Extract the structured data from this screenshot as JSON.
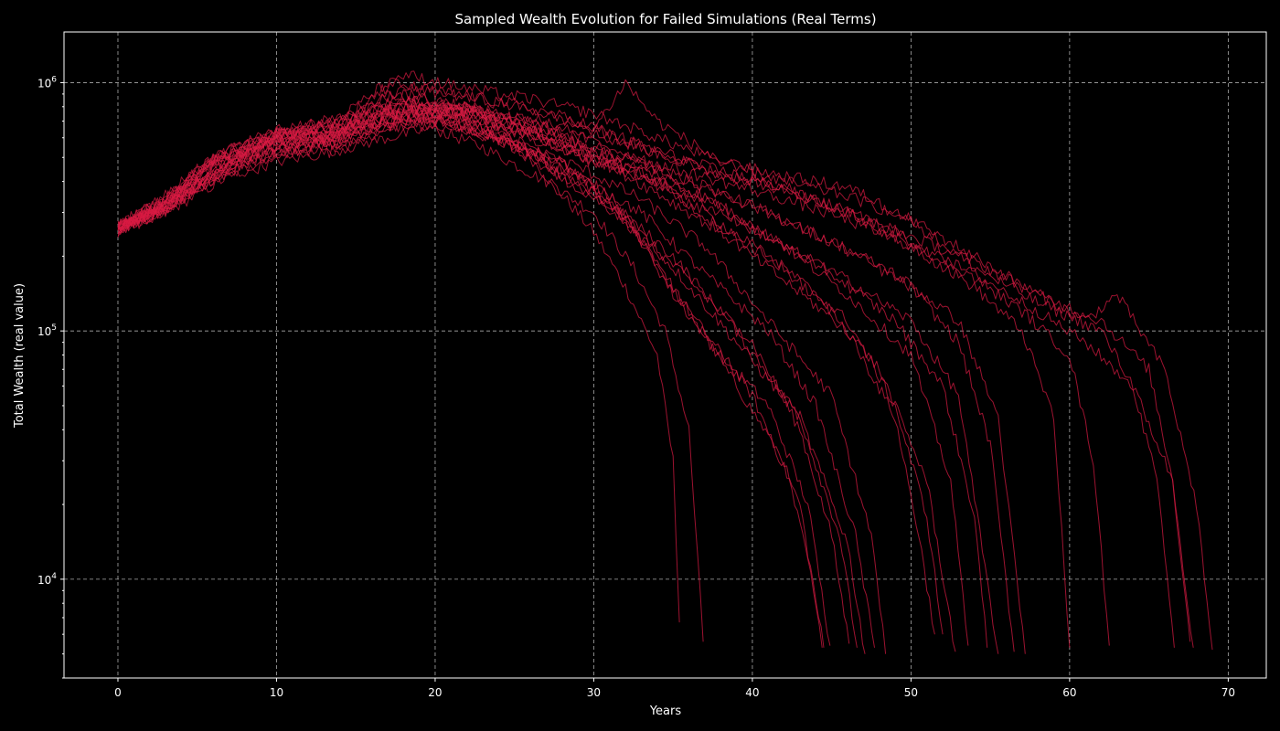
{
  "chart_data": {
    "type": "line",
    "title": "Sampled Wealth Evolution for Failed Simulations (Real Terms)",
    "xlabel": "Years",
    "ylabel": "Total Wealth (real value)",
    "xlim": [
      -3.4,
      72.4
    ],
    "ylim": [
      4000,
      1600000
    ],
    "yscale": "log",
    "grid": true,
    "legend": "none",
    "x_ticks": [
      0,
      10,
      20,
      30,
      40,
      50,
      60,
      70
    ],
    "x_tick_labels": [
      "0",
      "10",
      "20",
      "30",
      "40",
      "50",
      "60",
      "70"
    ],
    "y_ticks": [
      10000,
      100000,
      1000000
    ],
    "y_tick_exponents": [
      "4",
      "5",
      "6"
    ],
    "y_tick_base": "10",
    "series_color": "#d81b42",
    "series": [
      {
        "x": [
          0,
          3,
          6,
          10,
          14,
          18,
          20,
          24,
          26,
          30,
          32,
          34,
          35,
          35.4
        ],
        "y": [
          260000,
          320000,
          450000,
          600000,
          650000,
          800000,
          750000,
          600000,
          500000,
          250000,
          150000,
          80000,
          30000,
          6700
        ]
      },
      {
        "x": [
          0,
          3,
          7,
          10,
          13,
          17,
          20,
          23,
          27,
          30,
          32.5,
          34.5,
          36,
          36.9
        ],
        "y": [
          270000,
          300000,
          420000,
          520000,
          600000,
          700000,
          650000,
          550000,
          400000,
          300000,
          180000,
          100000,
          40000,
          5600
        ]
      },
      {
        "x": [
          0,
          2,
          5,
          9,
          12,
          16,
          20,
          24,
          28,
          31,
          35,
          39,
          42,
          43.5,
          44.4
        ],
        "y": [
          250000,
          280000,
          380000,
          500000,
          550000,
          650000,
          700000,
          600000,
          450000,
          350000,
          150000,
          60000,
          30000,
          12000,
          5300
        ]
      },
      {
        "x": [
          0,
          3,
          6,
          10,
          14,
          18,
          22,
          26,
          29,
          32,
          36,
          40,
          43,
          44.5
        ],
        "y": [
          260000,
          330000,
          460000,
          550000,
          600000,
          750000,
          650000,
          520000,
          380000,
          280000,
          120000,
          55000,
          20000,
          5300
        ]
      },
      {
        "x": [
          0,
          2,
          6,
          10,
          13,
          17,
          21,
          25,
          28,
          32,
          35,
          38,
          41,
          43.5,
          44.9
        ],
        "y": [
          270000,
          300000,
          400000,
          480000,
          520000,
          600000,
          680000,
          580000,
          420000,
          300000,
          140000,
          80000,
          50000,
          20000,
          5400
        ]
      },
      {
        "x": [
          0,
          3,
          7,
          10,
          14,
          18,
          21,
          24,
          28,
          32,
          36,
          40,
          43,
          45,
          46.1
        ],
        "y": [
          255000,
          340000,
          480000,
          580000,
          560000,
          700000,
          750000,
          620000,
          480000,
          280000,
          160000,
          90000,
          40000,
          15000,
          5500
        ]
      },
      {
        "x": [
          0,
          3,
          6,
          10,
          14,
          17,
          20,
          24,
          28,
          31,
          35,
          39,
          43,
          45.5,
          46.6
        ],
        "y": [
          265000,
          300000,
          430000,
          530000,
          580000,
          720000,
          800000,
          640000,
          470000,
          330000,
          200000,
          100000,
          45000,
          15000,
          5300
        ]
      },
      {
        "x": [
          0,
          2,
          6,
          9,
          13,
          17,
          20,
          24,
          27,
          31,
          35,
          39,
          43,
          46,
          47.1
        ],
        "y": [
          260000,
          290000,
          410000,
          560000,
          520000,
          650000,
          720000,
          600000,
          450000,
          320000,
          180000,
          90000,
          45000,
          14000,
          5000
        ]
      },
      {
        "x": [
          0,
          3,
          7,
          10,
          14,
          18,
          22,
          25,
          29,
          33,
          37,
          41,
          44,
          46.5,
          47.7
        ],
        "y": [
          258000,
          310000,
          470000,
          600000,
          640000,
          820000,
          700000,
          550000,
          420000,
          300000,
          170000,
          100000,
          50000,
          15000,
          5300
        ]
      },
      {
        "x": [
          0,
          3,
          6,
          10,
          13,
          17,
          21,
          25,
          29,
          33,
          37,
          41,
          45,
          47.5,
          48.4
        ],
        "y": [
          262000,
          350000,
          500000,
          620000,
          580000,
          760000,
          680000,
          560000,
          460000,
          340000,
          220000,
          110000,
          55000,
          15000,
          5000
        ]
      },
      {
        "x": [
          0,
          3,
          6,
          10,
          14,
          18,
          22,
          26,
          30,
          34,
          38,
          42,
          46,
          49,
          50.5,
          51.5
        ],
        "y": [
          250000,
          330000,
          480000,
          580000,
          620000,
          760000,
          800000,
          640000,
          500000,
          360000,
          250000,
          160000,
          100000,
          45000,
          15000,
          6000
        ]
      },
      {
        "x": [
          0,
          3,
          7,
          10,
          14,
          18,
          22,
          26,
          30,
          34,
          38,
          42,
          46,
          49,
          51,
          52
        ],
        "y": [
          265000,
          300000,
          460000,
          540000,
          600000,
          720000,
          760000,
          620000,
          480000,
          400000,
          260000,
          180000,
          110000,
          50000,
          18000,
          6000
        ]
      },
      {
        "x": [
          0,
          2,
          6,
          10,
          14,
          17,
          21,
          25,
          29,
          33,
          37,
          41,
          45,
          48,
          51,
          52.8
        ],
        "y": [
          255000,
          290000,
          430000,
          520000,
          580000,
          700000,
          780000,
          650000,
          520000,
          420000,
          300000,
          200000,
          120000,
          70000,
          25000,
          5100
        ]
      },
      {
        "x": [
          0,
          3,
          6,
          10,
          14,
          18,
          22,
          26,
          30,
          34,
          38,
          42,
          46,
          50,
          52.5,
          53.6
        ],
        "y": [
          260000,
          320000,
          470000,
          600000,
          620000,
          780000,
          720000,
          600000,
          480000,
          430000,
          320000,
          220000,
          140000,
          80000,
          25000,
          5400
        ]
      },
      {
        "x": [
          0,
          3,
          6,
          10,
          13,
          17,
          21,
          25,
          29,
          33,
          37,
          41,
          45,
          49,
          52,
          54,
          54.8
        ],
        "y": [
          270000,
          340000,
          500000,
          640000,
          600000,
          740000,
          820000,
          680000,
          560000,
          440000,
          340000,
          240000,
          170000,
          110000,
          60000,
          18000,
          5300
        ]
      },
      {
        "x": [
          0,
          3,
          7,
          10,
          14,
          18,
          22,
          26,
          30,
          34,
          38,
          42,
          46,
          50,
          53,
          55.5
        ],
        "y": [
          258000,
          310000,
          450000,
          560000,
          640000,
          800000,
          740000,
          620000,
          520000,
          400000,
          300000,
          220000,
          160000,
          110000,
          55000,
          5000
        ]
      },
      {
        "x": [
          0,
          3,
          6,
          10,
          14,
          18,
          22,
          26,
          30,
          34,
          38,
          42,
          46,
          50,
          53,
          55,
          56.5
        ],
        "y": [
          262000,
          330000,
          480000,
          600000,
          660000,
          860000,
          760000,
          640000,
          540000,
          450000,
          360000,
          280000,
          210000,
          150000,
          90000,
          35000,
          5100
        ]
      },
      {
        "x": [
          0,
          3,
          6,
          10,
          14,
          17,
          21,
          25,
          29,
          33,
          37,
          41,
          45,
          49,
          53,
          55.5,
          57.2
        ],
        "y": [
          255000,
          300000,
          460000,
          580000,
          620000,
          900000,
          820000,
          700000,
          580000,
          470000,
          380000,
          300000,
          230000,
          170000,
          110000,
          45000,
          5000
        ]
      },
      {
        "x": [
          0,
          3,
          7,
          10,
          14,
          18,
          22,
          26,
          30,
          34,
          38,
          42,
          46,
          50,
          54,
          57,
          59,
          60
        ],
        "y": [
          260000,
          320000,
          480000,
          620000,
          680000,
          950000,
          880000,
          780000,
          650000,
          520000,
          430000,
          380000,
          300000,
          220000,
          150000,
          100000,
          45000,
          5300
        ]
      },
      {
        "x": [
          0,
          3,
          6,
          10,
          14,
          17,
          21,
          25,
          29,
          33,
          37,
          41,
          45,
          49,
          53,
          57,
          60,
          61.5,
          62.5
        ],
        "y": [
          265000,
          340000,
          500000,
          650000,
          720000,
          1000000,
          900000,
          820000,
          700000,
          560000,
          460000,
          390000,
          320000,
          250000,
          180000,
          120000,
          80000,
          30000,
          5400
        ]
      },
      {
        "x": [
          0,
          3,
          6,
          10,
          14,
          18,
          22,
          26,
          30,
          34,
          38,
          42,
          46,
          50,
          54,
          58,
          62,
          64,
          65.5,
          66.6
        ],
        "y": [
          255000,
          330000,
          480000,
          600000,
          700000,
          1080000,
          950000,
          860000,
          750000,
          600000,
          480000,
          420000,
          380000,
          280000,
          180000,
          130000,
          100000,
          60000,
          25000,
          5300
        ]
      },
      {
        "x": [
          0,
          3,
          7,
          10,
          14,
          18,
          22,
          26,
          30,
          34,
          38,
          42,
          46,
          50,
          54,
          58,
          62,
          65,
          66.5,
          67.6
        ],
        "y": [
          262000,
          310000,
          470000,
          620000,
          680000,
          900000,
          800000,
          720000,
          620000,
          520000,
          430000,
          370000,
          300000,
          240000,
          190000,
          140000,
          110000,
          70000,
          25000,
          5600
        ]
      },
      {
        "x": [
          0,
          3,
          6,
          10,
          14,
          18,
          22,
          26,
          30,
          34,
          38,
          42,
          46,
          50,
          54,
          58,
          61,
          64,
          66.5,
          67.8
        ],
        "y": [
          258000,
          340000,
          500000,
          640000,
          720000,
          860000,
          760000,
          680000,
          580000,
          470000,
          400000,
          340000,
          280000,
          220000,
          170000,
          120000,
          90000,
          60000,
          25000,
          5300
        ]
      },
      {
        "x": [
          0,
          3,
          6,
          10,
          14,
          18,
          22,
          26,
          30,
          32,
          34,
          38,
          42,
          46,
          50,
          54,
          58,
          61,
          63,
          66,
          68,
          69
        ],
        "y": [
          260000,
          320000,
          490000,
          600000,
          700000,
          820000,
          780000,
          700000,
          650000,
          1000000,
          700000,
          480000,
          400000,
          350000,
          280000,
          200000,
          140000,
          110000,
          140000,
          70000,
          20000,
          5200
        ]
      }
    ]
  }
}
